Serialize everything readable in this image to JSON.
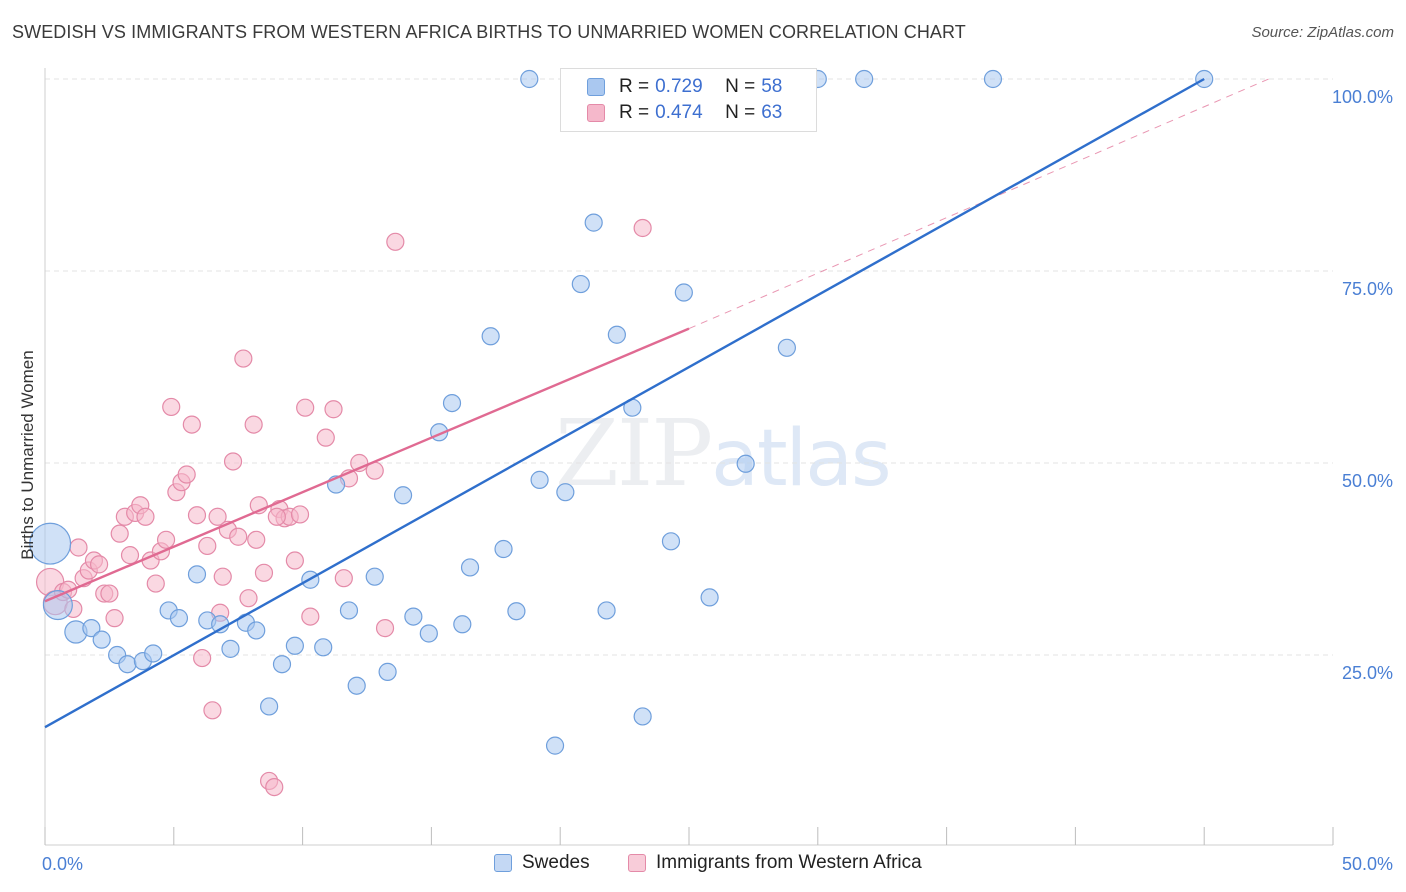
{
  "title": "SWEDISH VS IMMIGRANTS FROM WESTERN AFRICA BIRTHS TO UNMARRIED WOMEN CORRELATION CHART",
  "source": "Source: ZipAtlas.com",
  "watermark": {
    "zip": "ZIP",
    "atlas": "atlas"
  },
  "legend_top": [
    {
      "r_label": "R =",
      "r_value": "0.729",
      "n_label": "N =",
      "n_value": "58"
    },
    {
      "r_label": "R =",
      "r_value": "0.474",
      "n_label": "N =",
      "n_value": "63"
    }
  ],
  "legend_bottom": [
    "Swedes",
    "Immigrants from Western Africa"
  ],
  "colors": {
    "swedes_fill": "#aac8f0",
    "swedes_stroke": "#6f9fdc",
    "swedes_line": "#2f6fcc",
    "wa_fill": "#f5b8cb",
    "wa_stroke": "#e48aa8",
    "wa_line": "#e06a92",
    "tick": "#4a7fd4",
    "grid": "#e3e3e3"
  },
  "chart_data": {
    "type": "scatter",
    "ylabel": "Births to Unmarried Women",
    "xlim": [
      0,
      50
    ],
    "ylim": [
      0,
      100
    ],
    "y_ticks": [
      25,
      50,
      75,
      100
    ],
    "y_tick_labels": [
      "25.0%",
      "50.0%",
      "75.0%",
      "100.0%"
    ],
    "x_tick_labels": [
      "0.0%",
      "50.0%"
    ],
    "grid": true,
    "legend_placement": "top-center",
    "series": [
      {
        "name": "Swedes",
        "r": 0.729,
        "n": 58,
        "trend": {
          "x0": 0,
          "y0": 15.6,
          "x1": 45,
          "y1": 100
        },
        "points": [
          [
            0.2,
            39.5,
            2.4
          ],
          [
            0.5,
            31.5,
            1.7
          ],
          [
            1.2,
            28,
            1.3
          ],
          [
            1.8,
            28.5,
            1
          ],
          [
            2.2,
            27,
            1
          ],
          [
            2.8,
            25,
            1
          ],
          [
            3.2,
            23.8,
            1
          ],
          [
            3.8,
            24.2,
            1
          ],
          [
            4.2,
            25.2,
            1
          ],
          [
            4.8,
            30.8,
            1
          ],
          [
            5.2,
            29.8,
            1
          ],
          [
            5.9,
            35.5,
            1
          ],
          [
            6.3,
            29.5,
            1
          ],
          [
            6.8,
            29,
            1
          ],
          [
            7.2,
            25.8,
            1
          ],
          [
            7.8,
            29.2,
            1
          ],
          [
            8.2,
            28.2,
            1
          ],
          [
            8.7,
            18.3,
            1
          ],
          [
            9.2,
            23.8,
            1
          ],
          [
            9.7,
            26.2,
            1
          ],
          [
            10.3,
            34.8,
            1
          ],
          [
            10.8,
            26,
            1
          ],
          [
            11.3,
            47.2,
            1
          ],
          [
            11.8,
            30.8,
            1
          ],
          [
            12.1,
            21,
            1
          ],
          [
            12.8,
            35.2,
            1
          ],
          [
            13.3,
            22.8,
            1
          ],
          [
            13.9,
            45.8,
            1
          ],
          [
            14.3,
            30,
            1
          ],
          [
            14.9,
            27.8,
            1
          ],
          [
            15.3,
            54,
            1
          ],
          [
            15.8,
            57.8,
            1
          ],
          [
            16.2,
            29,
            1
          ],
          [
            16.5,
            36.4,
            1
          ],
          [
            17.3,
            66.5,
            1
          ],
          [
            17.8,
            38.8,
            1
          ],
          [
            18.3,
            30.7,
            1
          ],
          [
            18.8,
            100,
            1
          ],
          [
            19.2,
            47.8,
            1
          ],
          [
            19.8,
            13.2,
            1
          ],
          [
            20.2,
            46.2,
            1
          ],
          [
            20.8,
            73.3,
            1
          ],
          [
            21.3,
            81.3,
            1
          ],
          [
            21.8,
            30.8,
            1
          ],
          [
            22.2,
            66.7,
            1
          ],
          [
            22.8,
            57.2,
            1
          ],
          [
            23.2,
            17,
            1
          ],
          [
            24.3,
            39.8,
            1
          ],
          [
            24.8,
            72.2,
            1
          ],
          [
            25.8,
            32.5,
            1
          ],
          [
            27.2,
            49.9,
            1
          ],
          [
            28.2,
            100,
            1
          ],
          [
            28.8,
            65,
            1
          ],
          [
            30,
            100,
            1
          ],
          [
            31.8,
            100,
            1
          ],
          [
            36.8,
            100,
            1
          ],
          [
            45,
            100,
            1
          ],
          [
            27.8,
            100,
            1
          ]
        ]
      },
      {
        "name": "Immigrants from Western Africa",
        "r": 0.474,
        "n": 63,
        "trend": {
          "x0": 0,
          "y0": 32,
          "x1": 25,
          "y1": 67.5
        },
        "trend_ext": {
          "x0": 25,
          "y0": 67.5,
          "x1": 47.5,
          "y1": 100
        },
        "points": [
          [
            0.2,
            34.5,
            1.6
          ],
          [
            0.4,
            31.8,
            1.4
          ],
          [
            0.7,
            33.2,
            1
          ],
          [
            0.9,
            33.5,
            1
          ],
          [
            1.1,
            31,
            1
          ],
          [
            1.3,
            39,
            1
          ],
          [
            1.5,
            35,
            1
          ],
          [
            1.7,
            36,
            1
          ],
          [
            1.9,
            37.3,
            1
          ],
          [
            2.1,
            36.8,
            1
          ],
          [
            2.3,
            33,
            1
          ],
          [
            2.5,
            33,
            1
          ],
          [
            2.7,
            29.8,
            1
          ],
          [
            2.9,
            40.8,
            1
          ],
          [
            3.1,
            43,
            1
          ],
          [
            3.3,
            38,
            1
          ],
          [
            3.5,
            43.5,
            1
          ],
          [
            3.7,
            44.5,
            1
          ],
          [
            3.9,
            43,
            1
          ],
          [
            4.1,
            37.3,
            1
          ],
          [
            4.3,
            34.3,
            1
          ],
          [
            4.5,
            38.5,
            1
          ],
          [
            4.7,
            40,
            1
          ],
          [
            4.9,
            57.3,
            1
          ],
          [
            5.1,
            46.2,
            1
          ],
          [
            5.3,
            47.5,
            1
          ],
          [
            5.5,
            48.5,
            1
          ],
          [
            5.7,
            55,
            1
          ],
          [
            5.9,
            43.2,
            1
          ],
          [
            6.1,
            24.6,
            1
          ],
          [
            6.3,
            39.2,
            1
          ],
          [
            6.5,
            17.8,
            1
          ],
          [
            6.7,
            43,
            1
          ],
          [
            6.9,
            35.2,
            1
          ],
          [
            7.1,
            41.3,
            1
          ],
          [
            7.3,
            50.2,
            1
          ],
          [
            7.5,
            40.4,
            1
          ],
          [
            7.7,
            63.6,
            1
          ],
          [
            7.9,
            32.4,
            1
          ],
          [
            8.1,
            55,
            1
          ],
          [
            8.3,
            44.5,
            1
          ],
          [
            8.5,
            35.7,
            1
          ],
          [
            8.7,
            8.6,
            1
          ],
          [
            8.9,
            7.8,
            1
          ],
          [
            9.1,
            44,
            1
          ],
          [
            9.3,
            42.8,
            1
          ],
          [
            9.5,
            43,
            1
          ],
          [
            9.7,
            37.3,
            1
          ],
          [
            9.9,
            43.3,
            1
          ],
          [
            10.1,
            57.2,
            1
          ],
          [
            10.3,
            30,
            1
          ],
          [
            10.9,
            53.3,
            1
          ],
          [
            11.2,
            57,
            1
          ],
          [
            11.8,
            48,
            1
          ],
          [
            12.2,
            50,
            1
          ],
          [
            12.8,
            49,
            1
          ],
          [
            13.2,
            28.5,
            1
          ],
          [
            13.6,
            78.8,
            1
          ],
          [
            23.2,
            80.6,
            1
          ],
          [
            11.6,
            35,
            1
          ],
          [
            8.2,
            40,
            1
          ],
          [
            6.8,
            30.5,
            1
          ],
          [
            9.0,
            43.0,
            1
          ]
        ]
      }
    ]
  }
}
